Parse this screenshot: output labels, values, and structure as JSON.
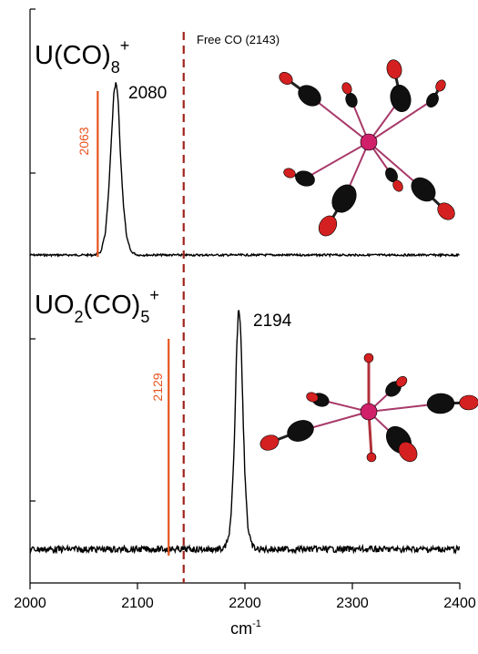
{
  "chart_data": [
    {
      "type": "line",
      "panel": "upper",
      "species": {
        "base": "U(CO)",
        "sub": "8",
        "sup": "+"
      },
      "xlim": [
        2000,
        2400
      ],
      "peak": {
        "x": 2080,
        "label": "2080"
      },
      "computed_line": {
        "x": 2063,
        "label": "2063"
      },
      "free_co": {
        "x": 2143,
        "label": "Free CO (2143)"
      },
      "series": [
        {
          "x": [
            2000,
            2060,
            2066,
            2070,
            2073,
            2076,
            2078,
            2080,
            2082,
            2084,
            2087,
            2090,
            2094,
            2100,
            2200,
            2400
          ],
          "y": [
            0.0,
            0.0,
            0.02,
            0.12,
            0.35,
            0.7,
            0.93,
            1.0,
            0.9,
            0.6,
            0.28,
            0.1,
            0.02,
            0.0,
            0.0,
            0.0
          ]
        }
      ]
    },
    {
      "type": "line",
      "panel": "lower",
      "species": {
        "base": "UO",
        "sub1": "2",
        "mid": "(CO)",
        "sub2": "5",
        "sup": "+"
      },
      "xlim": [
        2000,
        2400
      ],
      "peak": {
        "x": 2194,
        "label": "2194"
      },
      "computed_line": {
        "x": 2129,
        "label": "2129"
      },
      "free_co": {
        "x": 2143
      },
      "series": [
        {
          "x": [
            2000,
            2150,
            2180,
            2184,
            2187,
            2190,
            2192,
            2194,
            2196,
            2198,
            2200,
            2203,
            2206,
            2210,
            2400
          ],
          "y": [
            0.0,
            0.0,
            0.0,
            0.03,
            0.12,
            0.4,
            0.78,
            1.0,
            0.92,
            0.6,
            0.3,
            0.08,
            0.02,
            0.0,
            0.0
          ]
        }
      ]
    }
  ],
  "x_axis": {
    "label": "cm",
    "label_sup": "-1",
    "ticks": [
      "2000",
      "2100",
      "2200",
      "2300",
      "2400"
    ]
  },
  "colors": {
    "trace": "#000000",
    "computed": "#e8531f",
    "free_co": "#a0241c",
    "oxygen": "#d42020",
    "carbon": "#101010",
    "uranium": "#d0206a"
  },
  "molecule_icons": [
    "u-co8-molecule-icon",
    "uo2-co5-molecule-icon"
  ]
}
